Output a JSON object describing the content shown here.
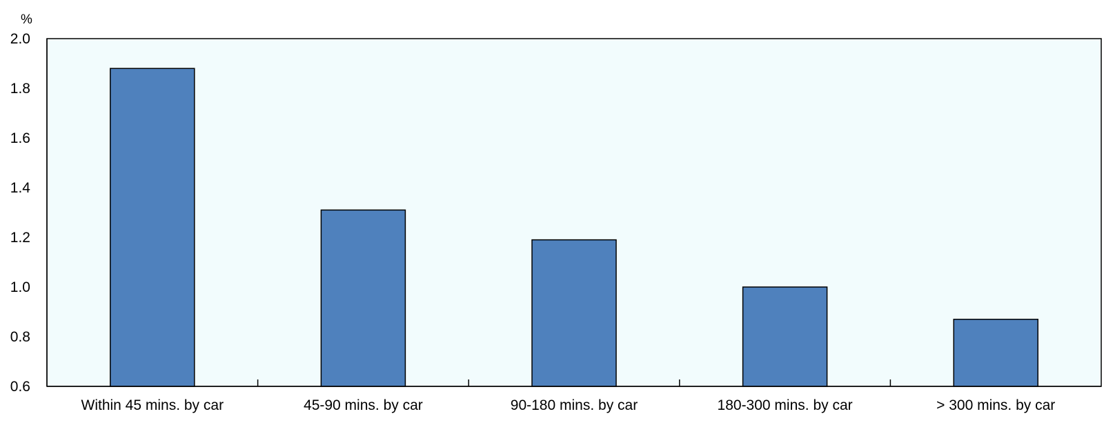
{
  "chart_data": {
    "type": "bar",
    "title": "",
    "xlabel": "",
    "ylabel": "",
    "y_unit": "%",
    "ylim": [
      0.6,
      2.0
    ],
    "y_ticks": [
      "0.6",
      "0.8",
      "1.0",
      "1.2",
      "1.4",
      "1.6",
      "1.8",
      "2.0"
    ],
    "categories": [
      "Within 45 mins. by car",
      "45-90 mins. by car",
      "90-180 mins. by car",
      "180-300 mins. by car",
      "> 300 mins. by car"
    ],
    "series": [
      {
        "values": [
          1.88,
          1.31,
          1.19,
          1.0,
          0.87
        ]
      }
    ],
    "grid": false,
    "legend": "none",
    "colors": {
      "bar_fill": "#4f81bd",
      "bar_stroke": "#000000",
      "plot_background": "#f2fcfd",
      "axis": "#000000"
    }
  }
}
